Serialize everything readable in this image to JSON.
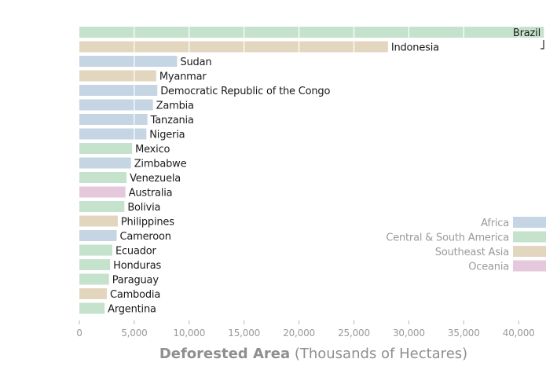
{
  "chart_data": {
    "type": "bar",
    "orientation": "horizontal",
    "xlabel": "Deforested Area",
    "xlabel_units": "(Thousands of Hectares)",
    "xlim": [
      0,
      42000
    ],
    "xticks": [
      0,
      5000,
      10000,
      15000,
      20000,
      25000,
      30000,
      35000,
      40000
    ],
    "xtick_labels": [
      "0",
      "5,000",
      "10,000",
      "15,000",
      "20,000",
      "25,000",
      "30,000",
      "35,000",
      "40,000"
    ],
    "grid": "vertical lines at x ticks",
    "legend_position": "right",
    "legend": [
      {
        "name": "Africa",
        "color": "#c5d5e3"
      },
      {
        "name": "Central & South America",
        "color": "#c5e3cc"
      },
      {
        "name": "Southeast Asia",
        "color": "#e3d6bf"
      },
      {
        "name": "Oceania",
        "color": "#e6c8dc"
      }
    ],
    "bars": [
      {
        "category": "Brazil",
        "value": 42300,
        "region": "Central & South America"
      },
      {
        "category": "Indonesia",
        "value": 28100,
        "region": "Southeast Asia"
      },
      {
        "category": "Sudan",
        "value": 8900,
        "region": "Africa"
      },
      {
        "category": "Myanmar",
        "value": 7000,
        "region": "Southeast Asia"
      },
      {
        "category": "Democratic Republic of the Congo",
        "value": 7100,
        "region": "Africa"
      },
      {
        "category": "Zambia",
        "value": 6700,
        "region": "Africa"
      },
      {
        "category": "Tanzania",
        "value": 6200,
        "region": "Africa"
      },
      {
        "category": "Nigeria",
        "value": 6100,
        "region": "Africa"
      },
      {
        "category": "Mexico",
        "value": 4800,
        "region": "Central & South America"
      },
      {
        "category": "Zimbabwe",
        "value": 4700,
        "region": "Africa"
      },
      {
        "category": "Venezuela",
        "value": 4300,
        "region": "Central & South America"
      },
      {
        "category": "Australia",
        "value": 4200,
        "region": "Oceania"
      },
      {
        "category": "Bolivia",
        "value": 4100,
        "region": "Central & South America"
      },
      {
        "category": "Philippines",
        "value": 3500,
        "region": "Southeast Asia"
      },
      {
        "category": "Cameroon",
        "value": 3400,
        "region": "Africa"
      },
      {
        "category": "Ecuador",
        "value": 3000,
        "region": "Central & South America"
      },
      {
        "category": "Honduras",
        "value": 2800,
        "region": "Central & South America"
      },
      {
        "category": "Paraguay",
        "value": 2700,
        "region": "Central & South America"
      },
      {
        "category": "Cambodia",
        "value": 2500,
        "region": "Southeast Asia"
      },
      {
        "category": "Argentina",
        "value": 2300,
        "region": "Central & South America"
      }
    ]
  }
}
